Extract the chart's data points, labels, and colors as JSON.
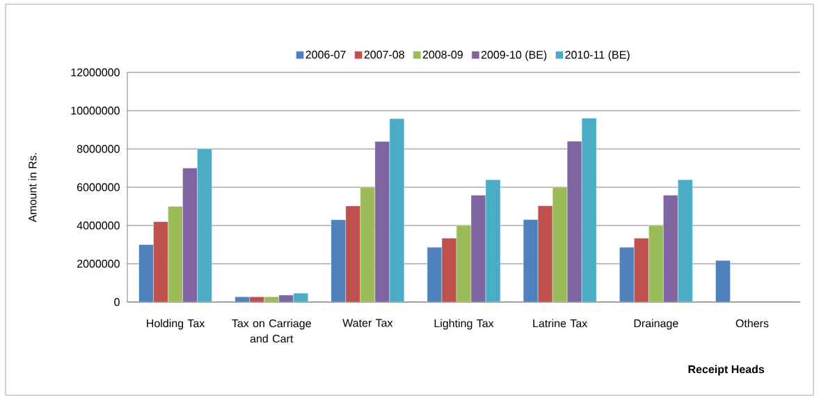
{
  "chart_data": {
    "type": "bar",
    "xlabel": "Receipt Heads",
    "ylabel": "Amount in Rs.",
    "categories": [
      "Holding Tax",
      "Tax on Carriage and Cart",
      "Water Tax",
      "Lighting Tax",
      "Latrine Tax",
      "Drainage",
      "Others"
    ],
    "series": [
      {
        "name": "2006-07",
        "color": "#4f81bd",
        "values": [
          3000000,
          270000,
          4300000,
          2860000,
          4310000,
          2860000,
          2170000
        ]
      },
      {
        "name": "2007-08",
        "color": "#c0504d",
        "values": [
          4200000,
          270000,
          5020000,
          3340000,
          5030000,
          3340000,
          null
        ]
      },
      {
        "name": "2008-09",
        "color": "#9bbb59",
        "values": [
          5000000,
          270000,
          6000000,
          4000000,
          6000000,
          4000000,
          null
        ]
      },
      {
        "name": "2009-10 (BE)",
        "color": "#8064a2",
        "values": [
          7000000,
          360000,
          8390000,
          5580000,
          8400000,
          5580000,
          null
        ]
      },
      {
        "name": "2010-11 (BE)",
        "color": "#4bacc6",
        "values": [
          8000000,
          460000,
          9580000,
          6390000,
          9610000,
          6390000,
          null
        ]
      }
    ],
    "ylim": [
      0,
      12000000
    ],
    "yticks": [
      0,
      2000000,
      4000000,
      6000000,
      8000000,
      10000000,
      12000000
    ],
    "grid": "y",
    "legend": "top"
  }
}
